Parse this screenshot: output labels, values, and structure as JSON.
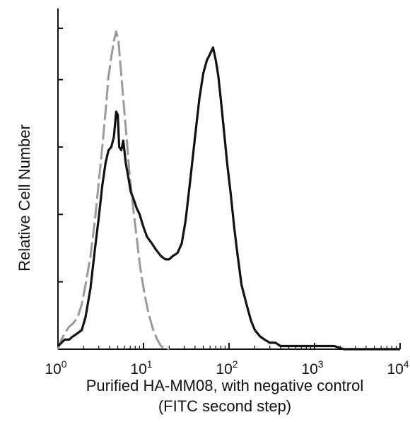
{
  "chart_data": {
    "type": "line",
    "title": "",
    "xlabel": "Purified HA-MM08,  with negative control",
    "xlabel_line2": "(FITC second step)",
    "ylabel": "Relative Cell Number",
    "x_scale": "log",
    "xlim": [
      1,
      10000
    ],
    "ylim": [
      0,
      100
    ],
    "grid": false,
    "legend": "none",
    "x_ticks": [
      {
        "value": 1,
        "base": "10",
        "exp": "0"
      },
      {
        "value": 10,
        "base": "10",
        "exp": "1"
      },
      {
        "value": 100,
        "base": "10",
        "exp": "2"
      },
      {
        "value": 1000,
        "base": "10",
        "exp": "3"
      },
      {
        "value": 10000,
        "base": "10",
        "exp": "4"
      }
    ],
    "y_ticks": [
      0,
      21,
      42,
      63,
      84,
      100
    ],
    "series": [
      {
        "color": "#9a9a9a",
        "style": "dashed",
        "x": [
          1.0,
          1.1,
          1.2,
          1.35,
          1.5,
          1.7,
          1.9,
          2.1,
          2.4,
          2.7,
          3.0,
          3.3,
          3.6,
          3.9,
          4.2,
          4.5,
          4.8,
          5.1,
          5.4,
          5.8,
          6.3,
          6.8,
          7.5,
          8.3,
          9.2,
          10.3,
          11.5,
          13.0,
          14.5,
          16.0,
          18.0,
          20.0
        ],
        "y": [
          0,
          3,
          5,
          7,
          8,
          10,
          14,
          20,
          29,
          40,
          52,
          63,
          74,
          85,
          91,
          96,
          99,
          96,
          88,
          78,
          67,
          56,
          45,
          35,
          25,
          17,
          11,
          6,
          3,
          1,
          0,
          0
        ]
      },
      {
        "color": "#111111",
        "style": "solid",
        "x": [
          1.0,
          1.1,
          1.2,
          1.35,
          1.5,
          1.7,
          1.9,
          2.1,
          2.4,
          2.7,
          3.0,
          3.3,
          3.6,
          3.9,
          4.2,
          4.5,
          4.8,
          5.0,
          5.2,
          5.5,
          5.8,
          6.2,
          6.6,
          7.1,
          7.6,
          8.3,
          9.0,
          10.0,
          11.0,
          12.5,
          14.0,
          16.0,
          18.0,
          20.0,
          22.0,
          25.0,
          28.0,
          31.0,
          35.0,
          40.0,
          45.0,
          50.0,
          55.0,
          60.0,
          65.0,
          70.0,
          75.0,
          80.0,
          88.0,
          95.0,
          105.0,
          115.0,
          125.0,
          140.0,
          160.0,
          180.0,
          200.0,
          230.0,
          260.0,
          300.0,
          350.0,
          400.0,
          500.0,
          600.0,
          800.0,
          1000.0,
          1300.0,
          1700.0,
          2200.0,
          3000.0,
          4000.0,
          6000.0,
          10000.0
        ],
        "y": [
          1,
          2,
          3,
          3,
          4,
          5,
          6,
          10,
          19,
          31,
          41,
          51,
          58,
          62,
          63,
          66,
          74,
          73,
          63,
          62,
          65,
          58,
          54,
          49,
          47,
          44,
          42,
          38,
          35,
          33,
          31,
          29,
          28,
          28,
          29,
          30,
          33,
          40,
          52,
          66,
          78,
          86,
          90,
          92,
          94,
          90,
          85,
          78,
          67,
          58,
          48,
          38,
          30,
          20,
          14,
          9,
          6,
          4,
          3,
          2,
          2,
          1,
          1,
          1,
          1,
          1,
          1,
          1,
          0,
          0,
          0,
          0,
          0
        ]
      }
    ]
  }
}
